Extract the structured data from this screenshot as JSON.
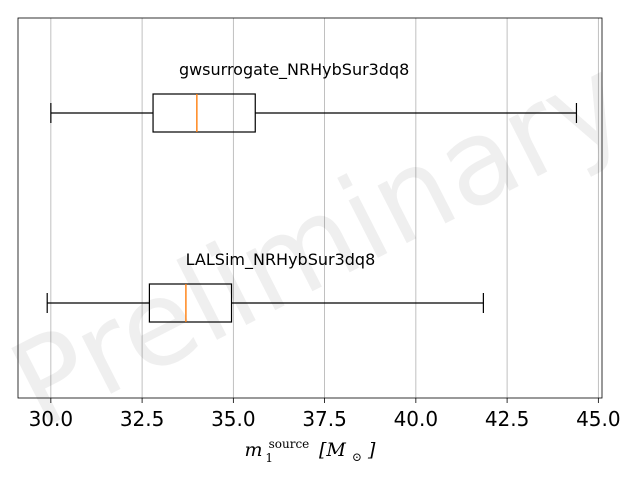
{
  "chart_data": {
    "type": "boxplot",
    "orientation": "horizontal",
    "watermark": "Preliminary",
    "xlabel": "m₁^source [M_⊙]",
    "xlabel_parts": {
      "main": "m",
      "sup": "source",
      "sub": "1",
      "unit": "[M",
      "unit_sub": "⊙",
      "unit_close": "]"
    },
    "xlim": [
      29.1,
      45.1
    ],
    "xticks": [
      30.0,
      32.5,
      35.0,
      37.5,
      40.0,
      42.5,
      45.0
    ],
    "xtick_labels": [
      "30.0",
      "32.5",
      "35.0",
      "37.5",
      "40.0",
      "42.5",
      "45.0"
    ],
    "grid": "x-only",
    "series": [
      {
        "name": "gwsurrogate_NRHybSur3dq8",
        "whisker_low": 30.0,
        "q1": 32.8,
        "median": 34.0,
        "q3": 35.6,
        "whisker_high": 44.4
      },
      {
        "name": "LALSim_NRHybSur3dq8",
        "whisker_low": 29.9,
        "q1": 32.7,
        "median": 33.7,
        "q3": 34.95,
        "whisker_high": 41.85
      }
    ],
    "colors": {
      "box": "#000000",
      "median": "#ff7f0e",
      "grid": "#b0b0b0",
      "spine": "#000000"
    }
  }
}
